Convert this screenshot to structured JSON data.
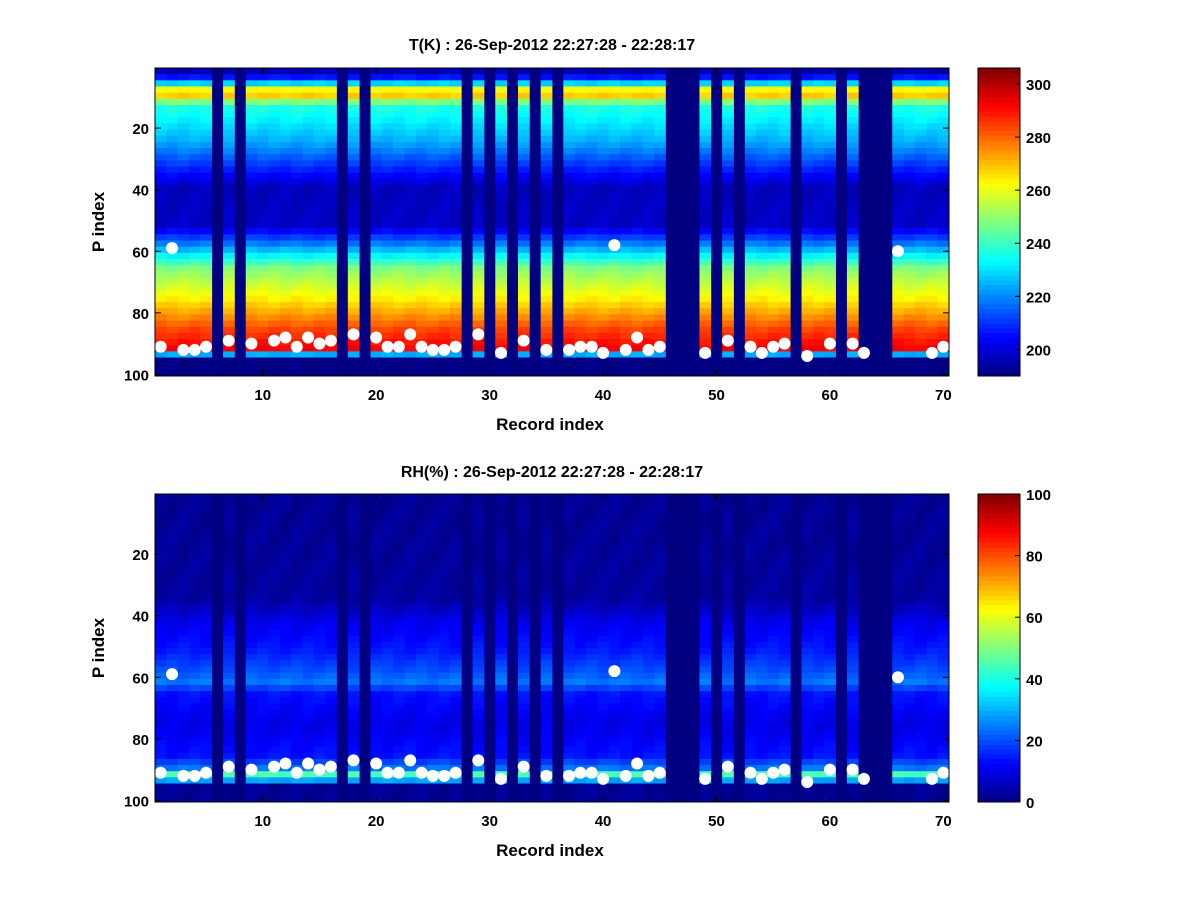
{
  "chart_data": [
    {
      "type": "heatmap",
      "title": "T(K) : 26-Sep-2012 22:27:28 - 22:28:17",
      "xlabel": "Record index",
      "ylabel": "P index",
      "xlim": [
        0.5,
        70.5
      ],
      "ylim": [
        0.5,
        100.5
      ],
      "y_reversed": true,
      "xticks": [
        10,
        20,
        30,
        40,
        50,
        60,
        70
      ],
      "yticks": [
        20,
        40,
        60,
        80,
        100
      ],
      "colorbar": {
        "min": 190,
        "max": 306,
        "ticks": [
          200,
          220,
          240,
          260,
          280,
          300
        ],
        "colormap": "jet"
      },
      "missing_records": [
        6,
        8,
        17,
        19,
        28,
        30,
        32,
        34,
        36,
        46,
        47,
        48,
        50,
        52,
        57,
        61,
        63,
        64,
        65
      ],
      "levels": [
        [
          1,
          190
        ],
        [
          5,
          212
        ],
        [
          8,
          262
        ],
        [
          10,
          268
        ],
        [
          13,
          238
        ],
        [
          25,
          224
        ],
        [
          40,
          197
        ],
        [
          52,
          198
        ],
        [
          58,
          218
        ],
        [
          66,
          248
        ],
        [
          76,
          264
        ],
        [
          86,
          284
        ],
        [
          92,
          292
        ],
        [
          95,
          190
        ]
      ],
      "markers": [
        {
          "x": 1,
          "y": 91
        },
        {
          "x": 2,
          "y": 59
        },
        {
          "x": 3,
          "y": 92
        },
        {
          "x": 4,
          "y": 92
        },
        {
          "x": 5,
          "y": 91
        },
        {
          "x": 7,
          "y": 89
        },
        {
          "x": 9,
          "y": 90
        },
        {
          "x": 11,
          "y": 89
        },
        {
          "x": 12,
          "y": 88
        },
        {
          "x": 13,
          "y": 91
        },
        {
          "x": 14,
          "y": 88
        },
        {
          "x": 15,
          "y": 90
        },
        {
          "x": 16,
          "y": 89
        },
        {
          "x": 18,
          "y": 87
        },
        {
          "x": 20,
          "y": 88
        },
        {
          "x": 21,
          "y": 91
        },
        {
          "x": 22,
          "y": 91
        },
        {
          "x": 23,
          "y": 87
        },
        {
          "x": 24,
          "y": 91
        },
        {
          "x": 25,
          "y": 92
        },
        {
          "x": 26,
          "y": 92
        },
        {
          "x": 27,
          "y": 91
        },
        {
          "x": 29,
          "y": 87
        },
        {
          "x": 31,
          "y": 93
        },
        {
          "x": 33,
          "y": 89
        },
        {
          "x": 35,
          "y": 92
        },
        {
          "x": 37,
          "y": 92
        },
        {
          "x": 38,
          "y": 91
        },
        {
          "x": 39,
          "y": 91
        },
        {
          "x": 40,
          "y": 93
        },
        {
          "x": 41,
          "y": 58
        },
        {
          "x": 42,
          "y": 92
        },
        {
          "x": 43,
          "y": 88
        },
        {
          "x": 44,
          "y": 92
        },
        {
          "x": 45,
          "y": 91
        },
        {
          "x": 49,
          "y": 93
        },
        {
          "x": 51,
          "y": 89
        },
        {
          "x": 53,
          "y": 91
        },
        {
          "x": 54,
          "y": 93
        },
        {
          "x": 55,
          "y": 91
        },
        {
          "x": 56,
          "y": 90
        },
        {
          "x": 58,
          "y": 94
        },
        {
          "x": 60,
          "y": 90
        },
        {
          "x": 62,
          "y": 90
        },
        {
          "x": 63,
          "y": 93
        },
        {
          "x": 66,
          "y": 60
        },
        {
          "x": 69,
          "y": 93
        },
        {
          "x": 70,
          "y": 91
        }
      ]
    },
    {
      "type": "heatmap",
      "title": "RH(%) : 26-Sep-2012 22:27:28 - 22:28:17",
      "xlabel": "Record index",
      "ylabel": "P index",
      "xlim": [
        0.5,
        70.5
      ],
      "ylim": [
        0.5,
        100.5
      ],
      "y_reversed": true,
      "xticks": [
        10,
        20,
        30,
        40,
        50,
        60,
        70
      ],
      "yticks": [
        20,
        40,
        60,
        80,
        100
      ],
      "colorbar": {
        "min": 0,
        "max": 100,
        "ticks": [
          0,
          20,
          40,
          60,
          80,
          100
        ],
        "colormap": "jet"
      },
      "missing_records": [
        6,
        8,
        17,
        19,
        28,
        30,
        32,
        34,
        36,
        46,
        47,
        48,
        50,
        52,
        57,
        61,
        63,
        64,
        65
      ],
      "levels": [
        [
          1,
          2
        ],
        [
          35,
          3
        ],
        [
          42,
          10
        ],
        [
          52,
          15
        ],
        [
          58,
          20
        ],
        [
          62,
          24
        ],
        [
          66,
          14
        ],
        [
          76,
          10
        ],
        [
          86,
          14
        ],
        [
          90,
          24
        ],
        [
          93,
          55
        ],
        [
          95,
          2
        ]
      ],
      "markers": [
        {
          "x": 1,
          "y": 91
        },
        {
          "x": 2,
          "y": 59
        },
        {
          "x": 3,
          "y": 92
        },
        {
          "x": 4,
          "y": 92
        },
        {
          "x": 5,
          "y": 91
        },
        {
          "x": 7,
          "y": 89
        },
        {
          "x": 9,
          "y": 90
        },
        {
          "x": 11,
          "y": 89
        },
        {
          "x": 12,
          "y": 88
        },
        {
          "x": 13,
          "y": 91
        },
        {
          "x": 14,
          "y": 88
        },
        {
          "x": 15,
          "y": 90
        },
        {
          "x": 16,
          "y": 89
        },
        {
          "x": 18,
          "y": 87
        },
        {
          "x": 20,
          "y": 88
        },
        {
          "x": 21,
          "y": 91
        },
        {
          "x": 22,
          "y": 91
        },
        {
          "x": 23,
          "y": 87
        },
        {
          "x": 24,
          "y": 91
        },
        {
          "x": 25,
          "y": 92
        },
        {
          "x": 26,
          "y": 92
        },
        {
          "x": 27,
          "y": 91
        },
        {
          "x": 29,
          "y": 87
        },
        {
          "x": 31,
          "y": 93
        },
        {
          "x": 33,
          "y": 89
        },
        {
          "x": 35,
          "y": 92
        },
        {
          "x": 37,
          "y": 92
        },
        {
          "x": 38,
          "y": 91
        },
        {
          "x": 39,
          "y": 91
        },
        {
          "x": 40,
          "y": 93
        },
        {
          "x": 41,
          "y": 58
        },
        {
          "x": 42,
          "y": 92
        },
        {
          "x": 43,
          "y": 88
        },
        {
          "x": 44,
          "y": 92
        },
        {
          "x": 45,
          "y": 91
        },
        {
          "x": 49,
          "y": 93
        },
        {
          "x": 51,
          "y": 89
        },
        {
          "x": 53,
          "y": 91
        },
        {
          "x": 54,
          "y": 93
        },
        {
          "x": 55,
          "y": 91
        },
        {
          "x": 56,
          "y": 90
        },
        {
          "x": 58,
          "y": 94
        },
        {
          "x": 60,
          "y": 90
        },
        {
          "x": 62,
          "y": 90
        },
        {
          "x": 63,
          "y": 93
        },
        {
          "x": 66,
          "y": 60
        },
        {
          "x": 69,
          "y": 93
        },
        {
          "x": 70,
          "y": 91
        }
      ]
    }
  ]
}
